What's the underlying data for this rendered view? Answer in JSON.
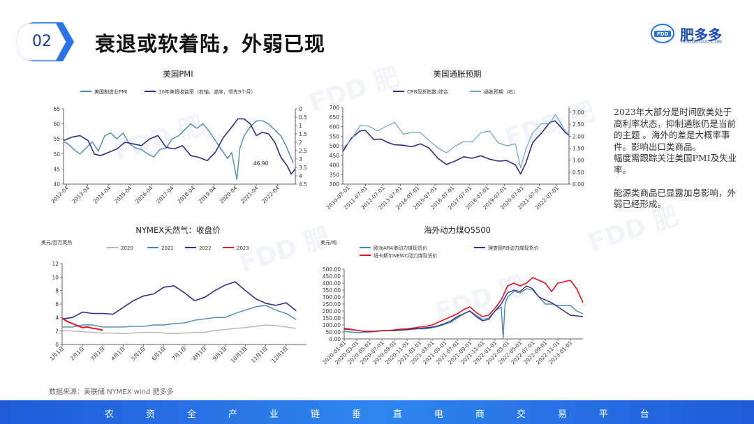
{
  "header": {
    "section_number": "02",
    "title": "衰退或软着陆，外弱已现",
    "logo_text": "肥多多",
    "logo_sub": "FEIDOODOO.COM",
    "logo_mark": "FDD"
  },
  "sidebar_text": {
    "paragraphs": [
      "2023年大部分是时间欧美处于高利率状态，抑制通胀仍是当前的主题 。海外的差是大概率事件。影响出口类商品。",
      "幅度需跟踪关注美国PMI及失业率。",
      "能源类商品已显露加息影响，外弱已经形成。"
    ]
  },
  "source": "数据来源：美联储 NYMEX wind  肥多多",
  "footer": {
    "chars": [
      "农",
      "资",
      "全",
      "产",
      "业",
      "链",
      "垂",
      "直",
      "电",
      "商",
      "交",
      "易",
      "平",
      "台"
    ]
  },
  "colors": {
    "pmi": "#4a88b5",
    "treasury": "#2e2e8a",
    "crb": "#2e2e8a",
    "inflation": "#6aa2c9",
    "gas2020": "#b5b5b5",
    "gas2021": "#4a88b5",
    "gas2022": "#2e2e8a",
    "gas2023": "#e0141e",
    "coalARA": "#4a88b5",
    "coalRB": "#2e2e8a",
    "coalNEWC": "#e0141e",
    "footer": "#2a73e6"
  },
  "chart_data": [
    {
      "id": "pmi",
      "type": "line",
      "title": "美国PMI",
      "legend": [
        "美国制造业PMI",
        "10年美债收益率（右轴，逆序，领先9个月）"
      ],
      "x_ticks": [
        "2012-04",
        "2013-04",
        "2014-04",
        "2015-04",
        "2016-04",
        "2017-04",
        "2018-04",
        "2019-04",
        "2020-04",
        "2021-04",
        "2022-04"
      ],
      "y_left_ticks": [
        40,
        45,
        50,
        55,
        60,
        65
      ],
      "y_right_ticks": [
        "0",
        "0.5",
        "1",
        "1.5",
        "2",
        "2.5",
        "3",
        "3.5",
        "4",
        "4.5"
      ],
      "ylim_left": [
        40,
        65
      ],
      "ylim_right_inverted": [
        0,
        4.5
      ],
      "annotation": "46.90",
      "series": [
        {
          "name": "美国制造业PMI",
          "axis": "left",
          "x": [
            2011.8,
            2012.0,
            2012.3,
            2012.6,
            2012.9,
            2013.2,
            2013.5,
            2013.8,
            2014.1,
            2014.4,
            2014.7,
            2015.0,
            2015.3,
            2015.6,
            2015.9,
            2016.2,
            2016.5,
            2016.8,
            2017.1,
            2017.4,
            2017.7,
            2018.0,
            2018.3,
            2018.6,
            2018.9,
            2019.2,
            2019.5,
            2019.8,
            2020.0,
            2020.25,
            2020.4,
            2020.6,
            2020.9,
            2021.2,
            2021.5,
            2021.8,
            2022.1,
            2022.4,
            2022.7,
            2023.0
          ],
          "values": [
            54,
            53.5,
            51.5,
            50,
            52,
            54,
            51,
            56,
            57,
            55,
            57,
            53.5,
            52,
            51.5,
            50,
            49,
            51.5,
            52,
            55,
            56,
            58,
            60,
            58.5,
            60,
            57.5,
            54.5,
            51.5,
            48.5,
            50.5,
            41.5,
            52,
            56,
            59,
            61,
            61,
            60,
            58,
            56,
            52,
            47
          ]
        },
        {
          "name": "10年美债收益率（右轴，逆序，领先9个月）",
          "axis": "right",
          "x": [
            2011.8,
            2012.2,
            2012.6,
            2013.0,
            2013.3,
            2013.6,
            2014.0,
            2014.4,
            2014.8,
            2015.2,
            2015.6,
            2016.0,
            2016.4,
            2016.8,
            2017.2,
            2017.6,
            2018.0,
            2018.4,
            2018.8,
            2019.2,
            2019.6,
            2020.0,
            2020.3,
            2020.6,
            2020.9,
            2021.2,
            2021.5,
            2021.8,
            2022.1,
            2022.4,
            2022.7,
            2022.9,
            2023.1
          ],
          "values": [
            1.9,
            1.7,
            1.6,
            1.9,
            2.7,
            2.8,
            2.6,
            2.4,
            2.0,
            2.1,
            2.2,
            1.8,
            1.6,
            2.3,
            2.4,
            2.2,
            2.8,
            2.9,
            3.1,
            2.6,
            1.7,
            1.1,
            0.6,
            0.6,
            0.9,
            1.6,
            1.4,
            1.5,
            2.0,
            2.9,
            3.4,
            3.9,
            3.6
          ]
        }
      ]
    },
    {
      "id": "inflation",
      "type": "line",
      "title": "美国通胀预期",
      "legend": [
        "CRB现货指数:综合",
        "通胀预期（右）"
      ],
      "x_ticks": [
        "2010-07-01",
        "2011-07-01",
        "2012-07-01",
        "2013-07-01",
        "2014-07-01",
        "2015-07-01",
        "2016-07-01",
        "2017-07-01",
        "2018-07-01",
        "2019-07-01",
        "2020-07-01",
        "2021-07-01",
        "2022-07-01"
      ],
      "y_left_ticks": [
        300,
        350,
        400,
        450,
        500,
        550,
        600,
        650,
        700
      ],
      "y_right_ticks": [
        "0.00",
        "0.50",
        "1.00",
        "1.50",
        "2.00",
        "2.50",
        "3.00"
      ],
      "ylim_left": [
        300,
        700
      ],
      "ylim_right": [
        0,
        3.2
      ],
      "series": [
        {
          "name": "CRB现货指数:综合",
          "axis": "left",
          "x": [
            2010.0,
            2010.5,
            2011.0,
            2011.3,
            2011.8,
            2012.2,
            2012.6,
            2013.0,
            2013.5,
            2014.0,
            2014.5,
            2015.0,
            2015.5,
            2016.0,
            2016.5,
            2017.0,
            2017.5,
            2018.0,
            2018.5,
            2019.0,
            2019.5,
            2020.0,
            2020.3,
            2020.6,
            2021.0,
            2021.5,
            2022.0,
            2022.3,
            2022.6,
            2022.9,
            2023.1
          ],
          "values": [
            480,
            530,
            570,
            575,
            530,
            535,
            520,
            510,
            510,
            505,
            500,
            480,
            430,
            400,
            420,
            445,
            440,
            455,
            440,
            410,
            415,
            395,
            350,
            410,
            520,
            570,
            630,
            640,
            590,
            560,
            550
          ]
        },
        {
          "name": "通胀预期（右）",
          "axis": "right",
          "x": [
            2010.0,
            2010.5,
            2011.0,
            2011.5,
            2012.0,
            2012.5,
            2013.0,
            2013.5,
            2014.0,
            2014.5,
            2015.0,
            2015.5,
            2016.0,
            2016.5,
            2017.0,
            2017.5,
            2018.0,
            2018.5,
            2019.0,
            2019.5,
            2020.0,
            2020.3,
            2020.6,
            2021.0,
            2021.5,
            2022.0,
            2022.3,
            2022.6,
            2022.9,
            2023.1
          ],
          "values": [
            1.6,
            1.9,
            2.4,
            2.3,
            2.3,
            2.4,
            2.5,
            2.2,
            2.2,
            2.1,
            1.7,
            1.6,
            1.3,
            1.5,
            1.9,
            1.8,
            2.1,
            2.1,
            1.8,
            1.6,
            1.6,
            0.8,
            1.5,
            2.1,
            2.4,
            2.6,
            2.9,
            2.5,
            2.3,
            2.2
          ]
        }
      ]
    },
    {
      "id": "gas",
      "type": "line",
      "title": "NYMEX天然气：收盘价",
      "unit": "美元/百万英热",
      "legend": [
        "2020",
        "2021",
        "2022",
        "2023"
      ],
      "x_ticks": [
        "1月1日",
        "2月1日",
        "3月1日",
        "4月1日",
        "5月1日",
        "6月1日",
        "7月1日",
        "8月1日",
        "9月1日",
        "10月1日",
        "11月1日",
        "12月1日"
      ],
      "y_ticks": [
        0,
        2,
        4,
        6,
        8,
        10,
        12
      ],
      "ylim": [
        0,
        12
      ],
      "series": [
        {
          "name": "2020",
          "x": [
            0,
            0.5,
            1,
            1.5,
            2,
            2.5,
            3,
            3.5,
            4,
            4.5,
            5,
            5.5,
            6,
            6.5,
            7,
            7.5,
            8,
            8.5,
            9,
            9.5,
            10,
            10.5,
            11,
            11.5
          ],
          "values": [
            2.1,
            2.0,
            1.9,
            1.8,
            1.7,
            1.7,
            1.6,
            1.7,
            1.8,
            1.8,
            1.7,
            1.6,
            1.7,
            1.8,
            1.8,
            2.1,
            2.2,
            2.4,
            2.5,
            2.7,
            2.9,
            2.8,
            2.6,
            2.4
          ]
        },
        {
          "name": "2021",
          "x": [
            0,
            0.5,
            1,
            1.5,
            2,
            2.5,
            3,
            3.5,
            4,
            4.5,
            5,
            5.5,
            6,
            6.5,
            7,
            7.5,
            8,
            8.5,
            9,
            9.5,
            10,
            10.5,
            11,
            11.5
          ],
          "values": [
            2.6,
            2.6,
            2.9,
            2.9,
            2.6,
            2.6,
            2.6,
            2.7,
            2.7,
            2.9,
            2.9,
            3.1,
            3.2,
            3.6,
            3.8,
            4.0,
            4.0,
            4.6,
            5.1,
            5.6,
            5.8,
            5.1,
            4.6,
            3.7
          ]
        },
        {
          "name": "2022",
          "x": [
            0,
            0.5,
            1,
            1.5,
            2,
            2.5,
            3,
            3.5,
            4,
            4.5,
            5,
            5.5,
            6,
            6.5,
            7,
            7.5,
            8,
            8.5,
            9,
            9.5,
            10,
            10.5,
            11,
            11.5
          ],
          "values": [
            3.8,
            4.0,
            4.8,
            4.6,
            4.6,
            4.5,
            5.5,
            6.5,
            7.2,
            7.5,
            8.5,
            8.7,
            7.7,
            6.5,
            7.0,
            8.0,
            8.8,
            9.3,
            8.0,
            6.8,
            6.1,
            5.8,
            6.2,
            5.0
          ]
        },
        {
          "name": "2023",
          "x": [
            0,
            0.25,
            0.5,
            0.75,
            1,
            1.25,
            1.5,
            1.75,
            2
          ],
          "values": [
            3.9,
            3.4,
            3.1,
            2.8,
            2.5,
            2.6,
            2.4,
            2.3,
            2.1
          ]
        }
      ]
    },
    {
      "id": "coal",
      "type": "line",
      "title": "海外动力煤Q5500",
      "unit": "美元/吨",
      "legend": [
        "欧洲ARA港动力煤现货价",
        "理查德RB动力煤现货价",
        "纽卡斯尔NEWC动力煤现货价"
      ],
      "x_ticks": [
        "2020-01-01",
        "2020-03-01",
        "2020-05-01",
        "2020-07-01",
        "2020-09-01",
        "2020-11-01",
        "2021-01-01",
        "2021-03-01",
        "2021-05-01",
        "2021-07-01",
        "2021-09-01",
        "2021-11-01",
        "2022-01-01",
        "2022-03-01",
        "2022-05-01",
        "2022-07-01",
        "2022-09-01",
        "2022-11-01",
        "2023-01-01"
      ],
      "y_ticks": [
        "0.00",
        "50.00",
        "100.00",
        "150.00",
        "200.00",
        "250.00",
        "300.00",
        "350.00",
        "400.00",
        "450.00",
        "500.00"
      ],
      "ylim": [
        0,
        500
      ],
      "series": [
        {
          "name": "欧洲ARA港动力煤现货价",
          "x": [
            0,
            1,
            2,
            3,
            4,
            5,
            6,
            7,
            8,
            9,
            10,
            11,
            12,
            13,
            14,
            15,
            16,
            17,
            18,
            19,
            20,
            21,
            22,
            23,
            24,
            25,
            25.3,
            25.6,
            26,
            27,
            28,
            29,
            30,
            31,
            32,
            33,
            34,
            35,
            36,
            37,
            38
          ],
          "values": [
            55,
            50,
            45,
            48,
            50,
            52,
            58,
            60,
            58,
            62,
            65,
            70,
            72,
            72,
            80,
            90,
            105,
            120,
            150,
            180,
            200,
            170,
            140,
            150,
            200,
            230,
            5,
            250,
            300,
            340,
            330,
            360,
            350,
            300,
            250,
            250,
            240,
            240,
            240,
            200,
            180
          ]
        },
        {
          "name": "理查德RB动力煤现货价",
          "x": [
            0,
            1,
            2,
            3,
            4,
            5,
            6,
            7,
            8,
            9,
            10,
            11,
            12,
            13,
            14,
            15,
            16,
            17,
            18,
            19,
            20,
            21,
            22,
            23,
            24,
            25,
            26,
            27,
            28,
            29,
            30,
            31,
            32,
            33,
            34,
            35,
            36,
            37,
            38
          ],
          "values": [
            75,
            70,
            62,
            55,
            52,
            55,
            60,
            60,
            62,
            65,
            68,
            72,
            75,
            80,
            85,
            95,
            110,
            130,
            160,
            180,
            200,
            160,
            130,
            140,
            200,
            250,
            330,
            350,
            340,
            380,
            360,
            300,
            280,
            260,
            230,
            200,
            170,
            165,
            160
          ]
        },
        {
          "name": "纽卡斯尔NEWC动力煤现货价",
          "x": [
            0,
            1,
            2,
            3,
            4,
            5,
            6,
            7,
            8,
            9,
            10,
            11,
            12,
            13,
            14,
            15,
            16,
            17,
            18,
            19,
            20,
            21,
            22,
            23,
            24,
            25,
            26,
            27,
            28,
            29,
            30,
            31,
            32,
            33,
            34,
            35,
            36,
            37,
            38
          ],
          "values": [
            70,
            68,
            62,
            55,
            55,
            55,
            60,
            60,
            65,
            70,
            72,
            78,
            85,
            90,
            100,
            120,
            140,
            160,
            180,
            210,
            230,
            190,
            160,
            170,
            220,
            280,
            380,
            400,
            380,
            400,
            440,
            420,
            400,
            340,
            400,
            410,
            420,
            360,
            260
          ]
        }
      ]
    }
  ]
}
